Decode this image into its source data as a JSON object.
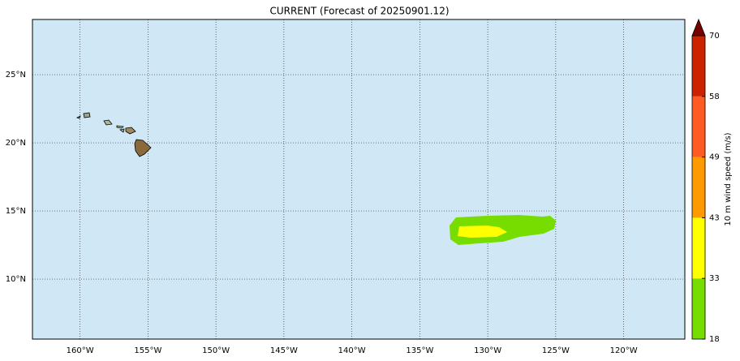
{
  "title": "CURRENT (Forecast of 20250901.12)",
  "map": {
    "xlim": [
      -163.5,
      -115.5
    ],
    "ylim": [
      5.6,
      29.05
    ],
    "xticks": [
      {
        "value": -160,
        "label": "160°W"
      },
      {
        "value": -155,
        "label": "155°W"
      },
      {
        "value": -150,
        "label": "150°W"
      },
      {
        "value": -145,
        "label": "145°W"
      },
      {
        "value": -140,
        "label": "140°W"
      },
      {
        "value": -135,
        "label": "135°W"
      },
      {
        "value": -130,
        "label": "130°W"
      },
      {
        "value": -125,
        "label": "125°W"
      },
      {
        "value": -120,
        "label": "120°W"
      }
    ],
    "yticks": [
      {
        "value": 10,
        "label": "10°N"
      },
      {
        "value": 15,
        "label": "15°N"
      },
      {
        "value": 20,
        "label": "20°N"
      },
      {
        "value": 25,
        "label": "25°N"
      }
    ],
    "ocean_color": "#d0e7f6",
    "grid": true
  },
  "colorbar": {
    "label": "10 m wind speed (m/s)",
    "ticks": [
      18,
      33,
      43,
      49,
      58,
      70
    ],
    "colors": [
      "#77dd00",
      "#ffff00",
      "#ff9900",
      "#ff5a22",
      "#cc2200"
    ],
    "extend_color": "#770000"
  }
}
